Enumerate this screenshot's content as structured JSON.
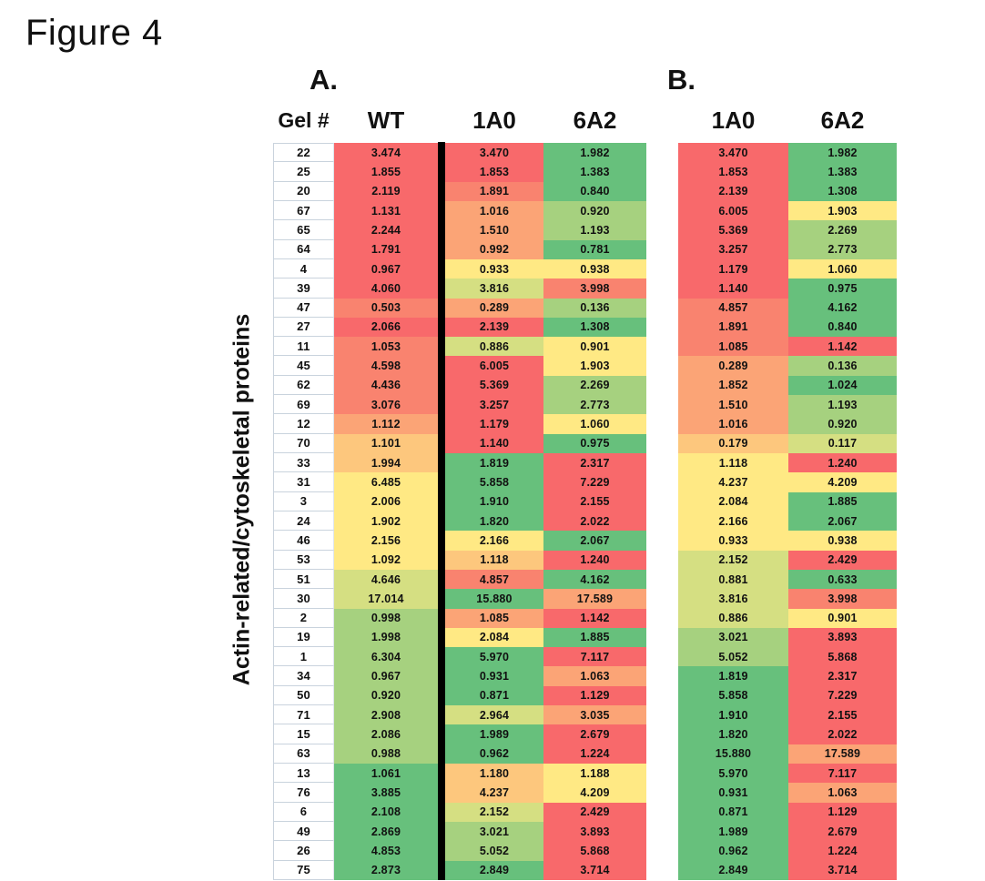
{
  "palette": {
    "red": "#F8696B",
    "salmon": "#F9836F",
    "orange": "#FBA476",
    "yellow_orange": "#FDC77D",
    "yellow": "#FFE984",
    "yellow_green": "#D5DF82",
    "light_green": "#A6D17F",
    "green": "#67C07C",
    "gel_border": "#c9d3dd",
    "divider": "#000000"
  },
  "chart_data": {
    "type": "heatmap",
    "title": "Figure 4",
    "ylabel": "Actin-related/cytoskeletal proteins",
    "legend_position": "none",
    "panels": [
      {
        "label": "A.",
        "columns": [
          "Gel #",
          "WT",
          "1A0",
          "6A2"
        ],
        "rows": [
          {
            "gel": "22",
            "values": [
              "3.474",
              "3.470",
              "1.982"
            ],
            "colors": [
              "red",
              "red",
              "green"
            ]
          },
          {
            "gel": "25",
            "values": [
              "1.855",
              "1.853",
              "1.383"
            ],
            "colors": [
              "red",
              "red",
              "green"
            ]
          },
          {
            "gel": "20",
            "values": [
              "2.119",
              "1.891",
              "0.840"
            ],
            "colors": [
              "red",
              "salmon",
              "green"
            ]
          },
          {
            "gel": "67",
            "values": [
              "1.131",
              "1.016",
              "0.920"
            ],
            "colors": [
              "red",
              "orange",
              "light_green"
            ]
          },
          {
            "gel": "65",
            "values": [
              "2.244",
              "1.510",
              "1.193"
            ],
            "colors": [
              "red",
              "orange",
              "light_green"
            ]
          },
          {
            "gel": "64",
            "values": [
              "1.791",
              "0.992",
              "0.781"
            ],
            "colors": [
              "red",
              "orange",
              "green"
            ]
          },
          {
            "gel": "4",
            "values": [
              "0.967",
              "0.933",
              "0.938"
            ],
            "colors": [
              "red",
              "yellow",
              "yellow"
            ]
          },
          {
            "gel": "39",
            "values": [
              "4.060",
              "3.816",
              "3.998"
            ],
            "colors": [
              "red",
              "yellow_green",
              "salmon"
            ]
          },
          {
            "gel": "47",
            "values": [
              "0.503",
              "0.289",
              "0.136"
            ],
            "colors": [
              "salmon",
              "orange",
              "light_green"
            ]
          },
          {
            "gel": "27",
            "values": [
              "2.066",
              "2.139",
              "1.308"
            ],
            "colors": [
              "red",
              "red",
              "green"
            ]
          },
          {
            "gel": "11",
            "values": [
              "1.053",
              "0.886",
              "0.901"
            ],
            "colors": [
              "salmon",
              "yellow_green",
              "yellow"
            ]
          },
          {
            "gel": "45",
            "values": [
              "4.598",
              "6.005",
              "1.903"
            ],
            "colors": [
              "salmon",
              "red",
              "yellow"
            ]
          },
          {
            "gel": "62",
            "values": [
              "4.436",
              "5.369",
              "2.269"
            ],
            "colors": [
              "salmon",
              "red",
              "light_green"
            ]
          },
          {
            "gel": "69",
            "values": [
              "3.076",
              "3.257",
              "2.773"
            ],
            "colors": [
              "salmon",
              "red",
              "light_green"
            ]
          },
          {
            "gel": "12",
            "values": [
              "1.112",
              "1.179",
              "1.060"
            ],
            "colors": [
              "orange",
              "red",
              "yellow"
            ]
          },
          {
            "gel": "70",
            "values": [
              "1.101",
              "1.140",
              "0.975"
            ],
            "colors": [
              "yellow_orange",
              "red",
              "green"
            ]
          },
          {
            "gel": "33",
            "values": [
              "1.994",
              "1.819",
              "2.317"
            ],
            "colors": [
              "yellow_orange",
              "green",
              "red"
            ]
          },
          {
            "gel": "31",
            "values": [
              "6.485",
              "5.858",
              "7.229"
            ],
            "colors": [
              "yellow",
              "green",
              "red"
            ]
          },
          {
            "gel": "3",
            "values": [
              "2.006",
              "1.910",
              "2.155"
            ],
            "colors": [
              "yellow",
              "green",
              "red"
            ]
          },
          {
            "gel": "24",
            "values": [
              "1.902",
              "1.820",
              "2.022"
            ],
            "colors": [
              "yellow",
              "green",
              "red"
            ]
          },
          {
            "gel": "46",
            "values": [
              "2.156",
              "2.166",
              "2.067"
            ],
            "colors": [
              "yellow",
              "yellow",
              "green"
            ]
          },
          {
            "gel": "53",
            "values": [
              "1.092",
              "1.118",
              "1.240"
            ],
            "colors": [
              "yellow",
              "yellow_orange",
              "red"
            ]
          },
          {
            "gel": "51",
            "values": [
              "4.646",
              "4.857",
              "4.162"
            ],
            "colors": [
              "yellow_green",
              "salmon",
              "green"
            ]
          },
          {
            "gel": "30",
            "values": [
              "17.014",
              "15.880",
              "17.589"
            ],
            "colors": [
              "yellow_green",
              "green",
              "orange"
            ]
          },
          {
            "gel": "2",
            "values": [
              "0.998",
              "1.085",
              "1.142"
            ],
            "colors": [
              "light_green",
              "orange",
              "red"
            ]
          },
          {
            "gel": "19",
            "values": [
              "1.998",
              "2.084",
              "1.885"
            ],
            "colors": [
              "light_green",
              "yellow",
              "green"
            ]
          },
          {
            "gel": "1",
            "values": [
              "6.304",
              "5.970",
              "7.117"
            ],
            "colors": [
              "light_green",
              "green",
              "red"
            ]
          },
          {
            "gel": "34",
            "values": [
              "0.967",
              "0.931",
              "1.063"
            ],
            "colors": [
              "light_green",
              "green",
              "orange"
            ]
          },
          {
            "gel": "50",
            "values": [
              "0.920",
              "0.871",
              "1.129"
            ],
            "colors": [
              "light_green",
              "green",
              "red"
            ]
          },
          {
            "gel": "71",
            "values": [
              "2.908",
              "2.964",
              "3.035"
            ],
            "colors": [
              "light_green",
              "yellow_green",
              "orange"
            ]
          },
          {
            "gel": "15",
            "values": [
              "2.086",
              "1.989",
              "2.679"
            ],
            "colors": [
              "light_green",
              "green",
              "red"
            ]
          },
          {
            "gel": "63",
            "values": [
              "0.988",
              "0.962",
              "1.224"
            ],
            "colors": [
              "light_green",
              "green",
              "red"
            ]
          },
          {
            "gel": "13",
            "values": [
              "1.061",
              "1.180",
              "1.188"
            ],
            "colors": [
              "green",
              "yellow_orange",
              "yellow"
            ]
          },
          {
            "gel": "76",
            "values": [
              "3.885",
              "4.237",
              "4.209"
            ],
            "colors": [
              "green",
              "yellow_orange",
              "yellow"
            ]
          },
          {
            "gel": "6",
            "values": [
              "2.108",
              "2.152",
              "2.429"
            ],
            "colors": [
              "green",
              "yellow_green",
              "red"
            ]
          },
          {
            "gel": "49",
            "values": [
              "2.869",
              "3.021",
              "3.893"
            ],
            "colors": [
              "green",
              "light_green",
              "red"
            ]
          },
          {
            "gel": "26",
            "values": [
              "4.853",
              "5.052",
              "5.868"
            ],
            "colors": [
              "green",
              "light_green",
              "red"
            ]
          },
          {
            "gel": "75",
            "values": [
              "2.873",
              "2.849",
              "3.714"
            ],
            "colors": [
              "green",
              "green",
              "red"
            ]
          }
        ]
      },
      {
        "label": "B.",
        "columns": [
          "1A0",
          "6A2"
        ],
        "rows": [
          {
            "values": [
              "3.470",
              "1.982"
            ],
            "colors": [
              "red",
              "green"
            ]
          },
          {
            "values": [
              "1.853",
              "1.383"
            ],
            "colors": [
              "red",
              "green"
            ]
          },
          {
            "values": [
              "2.139",
              "1.308"
            ],
            "colors": [
              "red",
              "green"
            ]
          },
          {
            "values": [
              "6.005",
              "1.903"
            ],
            "colors": [
              "red",
              "yellow"
            ]
          },
          {
            "values": [
              "5.369",
              "2.269"
            ],
            "colors": [
              "red",
              "light_green"
            ]
          },
          {
            "values": [
              "3.257",
              "2.773"
            ],
            "colors": [
              "red",
              "light_green"
            ]
          },
          {
            "values": [
              "1.179",
              "1.060"
            ],
            "colors": [
              "red",
              "yellow"
            ]
          },
          {
            "values": [
              "1.140",
              "0.975"
            ],
            "colors": [
              "red",
              "green"
            ]
          },
          {
            "values": [
              "4.857",
              "4.162"
            ],
            "colors": [
              "salmon",
              "green"
            ]
          },
          {
            "values": [
              "1.891",
              "0.840"
            ],
            "colors": [
              "salmon",
              "green"
            ]
          },
          {
            "values": [
              "1.085",
              "1.142"
            ],
            "colors": [
              "salmon",
              "red"
            ]
          },
          {
            "values": [
              "0.289",
              "0.136"
            ],
            "colors": [
              "orange",
              "light_green"
            ]
          },
          {
            "values": [
              "1.852",
              "1.024"
            ],
            "colors": [
              "orange",
              "green"
            ]
          },
          {
            "values": [
              "1.510",
              "1.193"
            ],
            "colors": [
              "orange",
              "light_green"
            ]
          },
          {
            "values": [
              "1.016",
              "0.920"
            ],
            "colors": [
              "orange",
              "light_green"
            ]
          },
          {
            "values": [
              "0.179",
              "0.117"
            ],
            "colors": [
              "yellow_orange",
              "yellow_green"
            ]
          },
          {
            "values": [
              "1.118",
              "1.240"
            ],
            "colors": [
              "yellow",
              "red"
            ]
          },
          {
            "values": [
              "4.237",
              "4.209"
            ],
            "colors": [
              "yellow",
              "yellow"
            ]
          },
          {
            "values": [
              "2.084",
              "1.885"
            ],
            "colors": [
              "yellow",
              "green"
            ]
          },
          {
            "values": [
              "2.166",
              "2.067"
            ],
            "colors": [
              "yellow",
              "green"
            ]
          },
          {
            "values": [
              "0.933",
              "0.938"
            ],
            "colors": [
              "yellow",
              "yellow"
            ]
          },
          {
            "values": [
              "2.152",
              "2.429"
            ],
            "colors": [
              "yellow_green",
              "red"
            ]
          },
          {
            "values": [
              "0.881",
              "0.633"
            ],
            "colors": [
              "yellow_green",
              "green"
            ]
          },
          {
            "values": [
              "3.816",
              "3.998"
            ],
            "colors": [
              "yellow_green",
              "salmon"
            ]
          },
          {
            "values": [
              "0.886",
              "0.901"
            ],
            "colors": [
              "yellow_green",
              "yellow"
            ]
          },
          {
            "values": [
              "3.021",
              "3.893"
            ],
            "colors": [
              "light_green",
              "red"
            ]
          },
          {
            "values": [
              "5.052",
              "5.868"
            ],
            "colors": [
              "light_green",
              "red"
            ]
          },
          {
            "values": [
              "1.819",
              "2.317"
            ],
            "colors": [
              "green",
              "red"
            ]
          },
          {
            "values": [
              "5.858",
              "7.229"
            ],
            "colors": [
              "green",
              "red"
            ]
          },
          {
            "values": [
              "1.910",
              "2.155"
            ],
            "colors": [
              "green",
              "red"
            ]
          },
          {
            "values": [
              "1.820",
              "2.022"
            ],
            "colors": [
              "green",
              "red"
            ]
          },
          {
            "values": [
              "15.880",
              "17.589"
            ],
            "colors": [
              "green",
              "orange"
            ]
          },
          {
            "values": [
              "5.970",
              "7.117"
            ],
            "colors": [
              "green",
              "red"
            ]
          },
          {
            "values": [
              "0.931",
              "1.063"
            ],
            "colors": [
              "green",
              "orange"
            ]
          },
          {
            "values": [
              "0.871",
              "1.129"
            ],
            "colors": [
              "green",
              "red"
            ]
          },
          {
            "values": [
              "1.989",
              "2.679"
            ],
            "colors": [
              "green",
              "red"
            ]
          },
          {
            "values": [
              "0.962",
              "1.224"
            ],
            "colors": [
              "green",
              "red"
            ]
          },
          {
            "values": [
              "2.849",
              "3.714"
            ],
            "colors": [
              "green",
              "red"
            ]
          }
        ]
      }
    ]
  }
}
